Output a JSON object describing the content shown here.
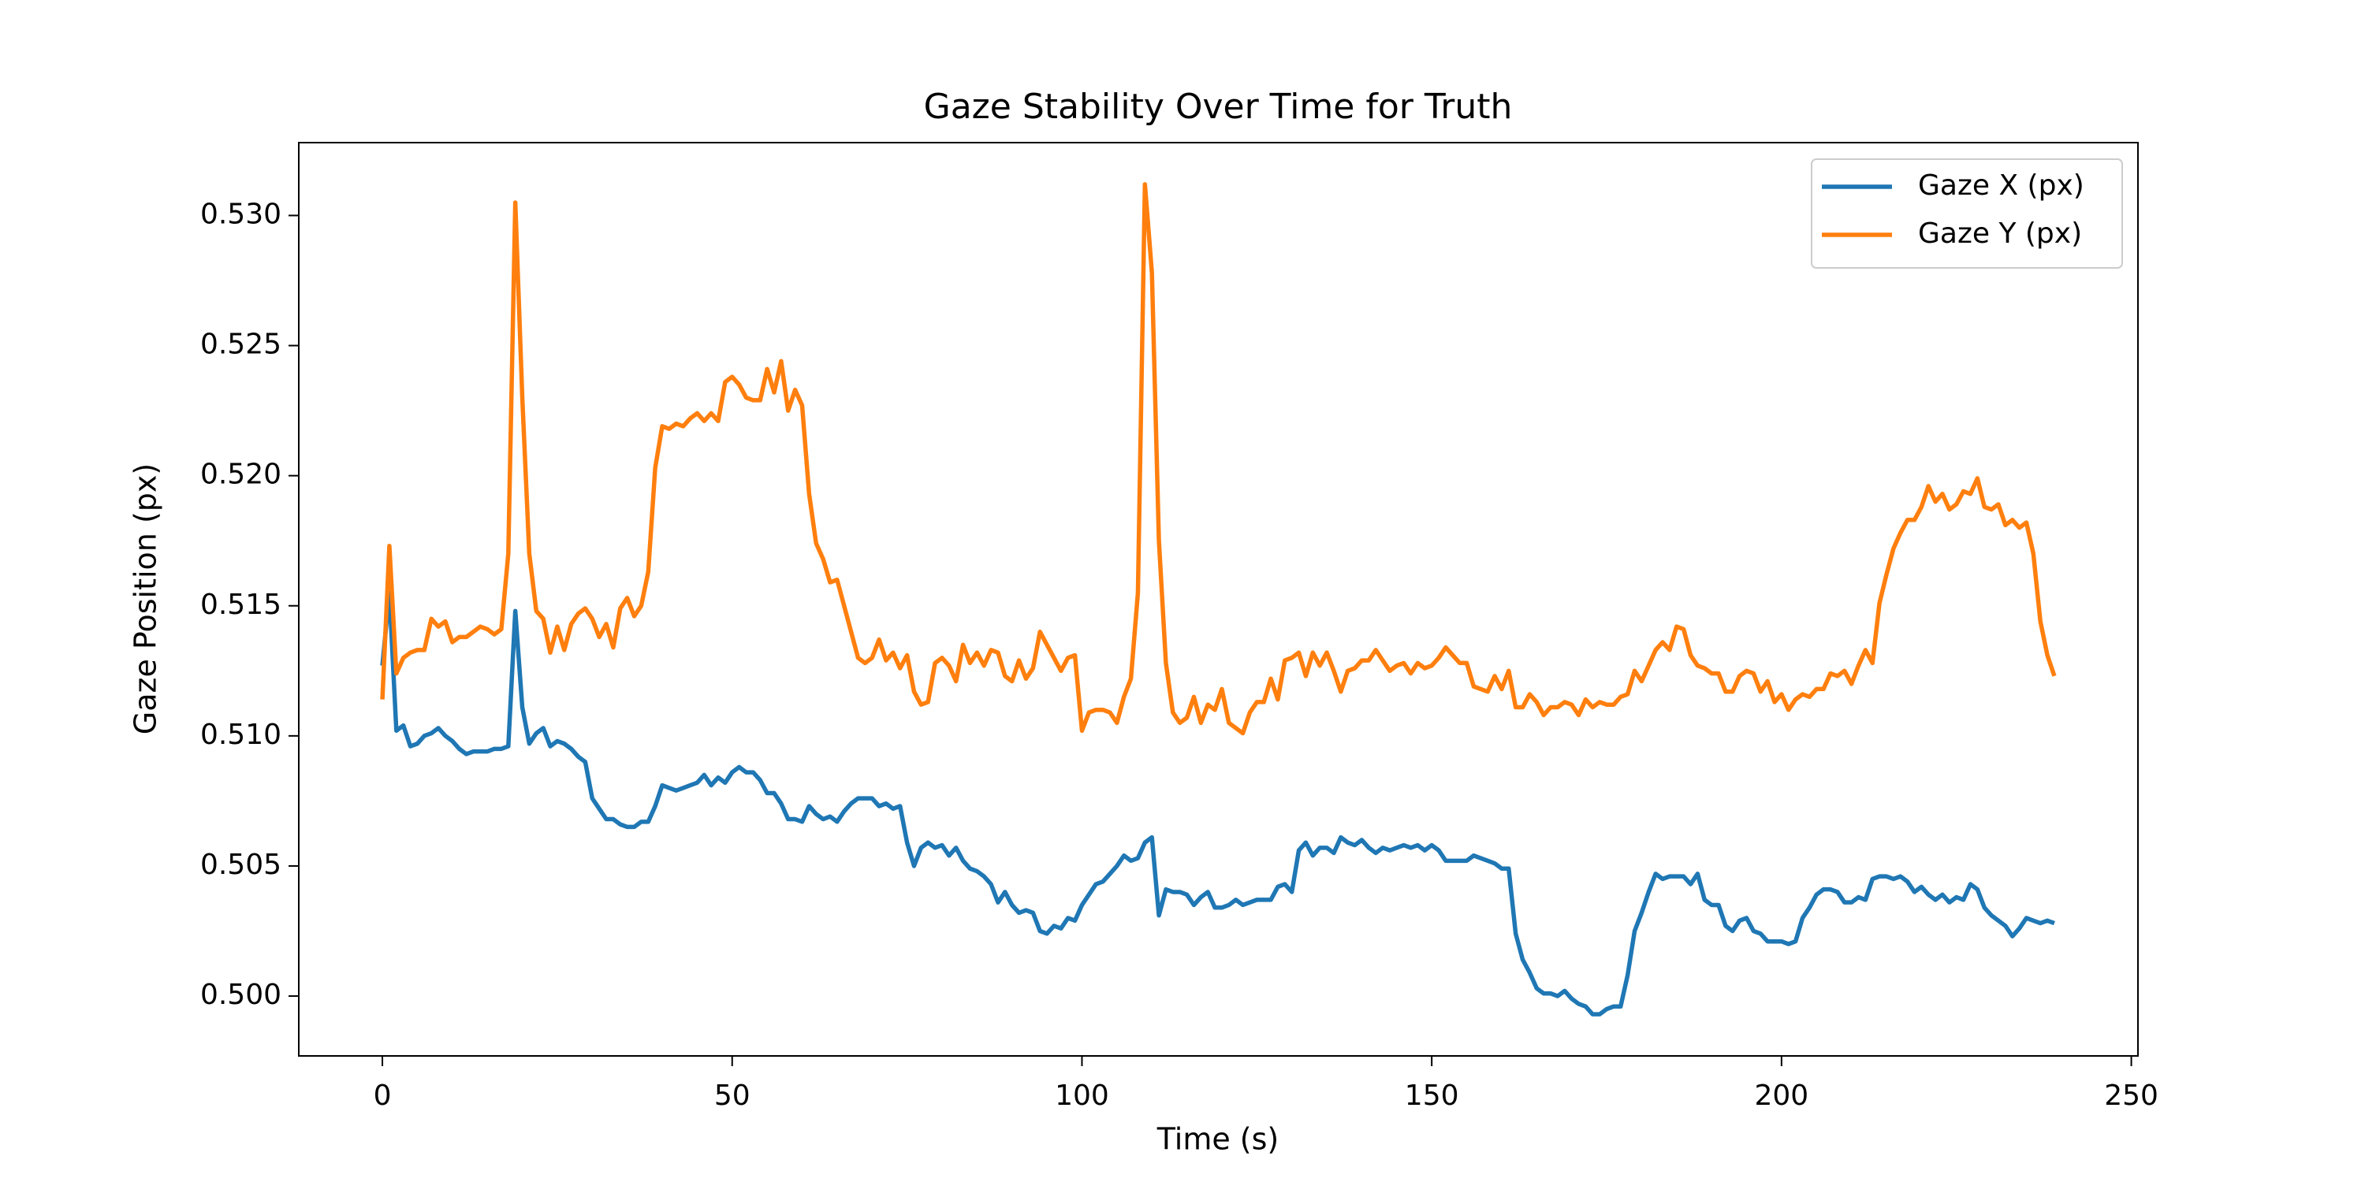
{
  "chart_data": {
    "type": "line",
    "title": "Gaze Stability Over Time for Truth",
    "xlabel": "Time (s)",
    "ylabel": "Gaze Position (px)",
    "x": [
      0,
      1,
      2,
      3,
      4,
      5,
      6,
      7,
      8,
      9,
      10,
      11,
      12,
      13,
      14,
      15,
      16,
      17,
      18,
      19,
      20,
      21,
      22,
      23,
      24,
      25,
      26,
      27,
      28,
      29,
      30,
      31,
      32,
      33,
      34,
      35,
      36,
      37,
      38,
      39,
      40,
      41,
      42,
      43,
      44,
      45,
      46,
      47,
      48,
      49,
      50,
      51,
      52,
      53,
      54,
      55,
      56,
      57,
      58,
      59,
      60,
      61,
      62,
      63,
      64,
      65,
      66,
      67,
      68,
      69,
      70,
      71,
      72,
      73,
      74,
      75,
      76,
      77,
      78,
      79,
      80,
      81,
      82,
      83,
      84,
      85,
      86,
      87,
      88,
      89,
      90,
      91,
      92,
      93,
      94,
      95,
      96,
      97,
      98,
      99,
      100,
      101,
      102,
      103,
      104,
      105,
      106,
      107,
      108,
      109,
      110,
      111,
      112,
      113,
      114,
      115,
      116,
      117,
      118,
      119,
      120,
      121,
      122,
      123,
      124,
      125,
      126,
      127,
      128,
      129,
      130,
      131,
      132,
      133,
      134,
      135,
      136,
      137,
      138,
      139,
      140,
      141,
      142,
      143,
      144,
      145,
      146,
      147,
      148,
      149,
      150,
      151,
      152,
      153,
      154,
      155,
      156,
      157,
      158,
      159,
      160,
      161,
      162,
      163,
      164,
      165,
      166,
      167,
      168,
      169,
      170,
      171,
      172,
      173,
      174,
      175,
      176,
      177,
      178,
      179,
      180,
      181,
      182,
      183,
      184,
      185,
      186,
      187,
      188,
      189,
      190,
      191,
      192,
      193,
      194,
      195,
      196,
      197,
      198,
      199,
      200,
      201,
      202,
      203,
      204,
      205,
      206,
      207,
      208,
      209,
      210,
      211,
      212,
      213,
      214,
      215,
      216,
      217,
      218,
      219,
      220,
      221,
      222,
      223,
      224,
      225,
      226,
      227,
      228,
      229,
      230,
      231,
      232,
      233,
      234,
      235,
      236,
      237,
      238,
      239
    ],
    "series": [
      {
        "name": "Gaze X (px)",
        "color": "#1f77b4",
        "values": [
          0.5127,
          0.5155,
          0.5102,
          0.5104,
          0.5096,
          0.5097,
          0.51,
          0.5101,
          0.5103,
          0.51,
          0.5098,
          0.5095,
          0.5093,
          0.5094,
          0.5094,
          0.5094,
          0.5095,
          0.5095,
          0.5096,
          0.5148,
          0.5111,
          0.5097,
          0.5101,
          0.5103,
          0.5096,
          0.5098,
          0.5097,
          0.5095,
          0.5092,
          0.509,
          0.5076,
          0.5072,
          0.5068,
          0.5068,
          0.5066,
          0.5065,
          0.5065,
          0.5067,
          0.5067,
          0.5073,
          0.5081,
          0.508,
          0.5079,
          0.508,
          0.5081,
          0.5082,
          0.5085,
          0.5081,
          0.5084,
          0.5082,
          0.5086,
          0.5088,
          0.5086,
          0.5086,
          0.5083,
          0.5078,
          0.5078,
          0.5074,
          0.5068,
          0.5068,
          0.5067,
          0.5073,
          0.507,
          0.5068,
          0.5069,
          0.5067,
          0.5071,
          0.5074,
          0.5076,
          0.5076,
          0.5076,
          0.5073,
          0.5074,
          0.5072,
          0.5073,
          0.5059,
          0.505,
          0.5057,
          0.5059,
          0.5057,
          0.5058,
          0.5054,
          0.5057,
          0.5052,
          0.5049,
          0.5048,
          0.5046,
          0.5043,
          0.5036,
          0.504,
          0.5035,
          0.5032,
          0.5033,
          0.5032,
          0.5025,
          0.5024,
          0.5027,
          0.5026,
          0.503,
          0.5029,
          0.5035,
          0.5039,
          0.5043,
          0.5044,
          0.5047,
          0.505,
          0.5054,
          0.5052,
          0.5053,
          0.5059,
          0.5061,
          0.5031,
          0.5041,
          0.504,
          0.504,
          0.5039,
          0.5035,
          0.5038,
          0.504,
          0.5034,
          0.5034,
          0.5035,
          0.5037,
          0.5035,
          0.5036,
          0.5037,
          0.5037,
          0.5037,
          0.5042,
          0.5043,
          0.504,
          0.5056,
          0.5059,
          0.5054,
          0.5057,
          0.5057,
          0.5055,
          0.5061,
          0.5059,
          0.5058,
          0.506,
          0.5057,
          0.5055,
          0.5057,
          0.5056,
          0.5057,
          0.5058,
          0.5057,
          0.5058,
          0.5056,
          0.5058,
          0.5056,
          0.5052,
          0.5052,
          0.5052,
          0.5052,
          0.5054,
          0.5053,
          0.5052,
          0.5051,
          0.5049,
          0.5049,
          0.5024,
          0.5014,
          0.5009,
          0.5003,
          0.5001,
          0.5001,
          0.5,
          0.5002,
          0.4999,
          0.4997,
          0.4996,
          0.4993,
          0.4993,
          0.4995,
          0.4996,
          0.4996,
          0.5008,
          0.5025,
          0.5032,
          0.504,
          0.5047,
          0.5045,
          0.5046,
          0.5046,
          0.5046,
          0.5043,
          0.5047,
          0.5037,
          0.5035,
          0.5035,
          0.5027,
          0.5025,
          0.5029,
          0.503,
          0.5025,
          0.5024,
          0.5021,
          0.5021,
          0.5021,
          0.502,
          0.5021,
          0.503,
          0.5034,
          0.5039,
          0.5041,
          0.5041,
          0.504,
          0.5036,
          0.5036,
          0.5038,
          0.5037,
          0.5045,
          0.5046,
          0.5046,
          0.5045,
          0.5046,
          0.5044,
          0.504,
          0.5042,
          0.5039,
          0.5037,
          0.5039,
          0.5036,
          0.5038,
          0.5037,
          0.5043,
          0.5041,
          0.5034,
          0.5031,
          0.5029,
          0.5027,
          0.5023,
          0.5026,
          0.503,
          0.5029,
          0.5028,
          0.5029,
          0.5028
        ]
      },
      {
        "name": "Gaze Y (px)",
        "color": "#ff7f0e",
        "values": [
          0.5114,
          0.5173,
          0.5124,
          0.513,
          0.5132,
          0.5133,
          0.5133,
          0.5145,
          0.5142,
          0.5144,
          0.5136,
          0.5138,
          0.5138,
          0.514,
          0.5142,
          0.5141,
          0.5139,
          0.5141,
          0.517,
          0.5305,
          0.523,
          0.517,
          0.5148,
          0.5145,
          0.5132,
          0.5142,
          0.5133,
          0.5143,
          0.5147,
          0.5149,
          0.5145,
          0.5138,
          0.5143,
          0.5134,
          0.5149,
          0.5153,
          0.5146,
          0.515,
          0.5163,
          0.5203,
          0.5219,
          0.5218,
          0.522,
          0.5219,
          0.5222,
          0.5224,
          0.5221,
          0.5224,
          0.5221,
          0.5236,
          0.5238,
          0.5235,
          0.523,
          0.5229,
          0.5229,
          0.5241,
          0.5232,
          0.5244,
          0.5225,
          0.5233,
          0.5227,
          0.5193,
          0.5174,
          0.5168,
          0.5159,
          0.516,
          0.515,
          0.514,
          0.513,
          0.5128,
          0.513,
          0.5137,
          0.5129,
          0.5132,
          0.5126,
          0.5131,
          0.5117,
          0.5112,
          0.5113,
          0.5128,
          0.513,
          0.5127,
          0.5121,
          0.5135,
          0.5128,
          0.5132,
          0.5127,
          0.5133,
          0.5132,
          0.5123,
          0.5121,
          0.5129,
          0.5122,
          0.5126,
          0.514,
          0.5135,
          0.513,
          0.5125,
          0.513,
          0.5131,
          0.5102,
          0.5109,
          0.511,
          0.511,
          0.5109,
          0.5105,
          0.5115,
          0.5122,
          0.5155,
          0.5312,
          0.5278,
          0.5175,
          0.5128,
          0.5109,
          0.5105,
          0.5107,
          0.5115,
          0.5105,
          0.5112,
          0.511,
          0.5118,
          0.5105,
          0.5103,
          0.5101,
          0.5109,
          0.5113,
          0.5113,
          0.5122,
          0.5114,
          0.5129,
          0.513,
          0.5132,
          0.5123,
          0.5132,
          0.5127,
          0.5132,
          0.5125,
          0.5117,
          0.5125,
          0.5126,
          0.5129,
          0.5129,
          0.5133,
          0.5129,
          0.5125,
          0.5127,
          0.5128,
          0.5124,
          0.5128,
          0.5126,
          0.5127,
          0.513,
          0.5134,
          0.5131,
          0.5128,
          0.5128,
          0.5119,
          0.5118,
          0.5117,
          0.5123,
          0.5118,
          0.5125,
          0.5111,
          0.5111,
          0.5116,
          0.5113,
          0.5108,
          0.5111,
          0.5111,
          0.5113,
          0.5112,
          0.5108,
          0.5114,
          0.5111,
          0.5113,
          0.5112,
          0.5112,
          0.5115,
          0.5116,
          0.5125,
          0.5121,
          0.5127,
          0.5133,
          0.5136,
          0.5133,
          0.5142,
          0.5141,
          0.5131,
          0.5127,
          0.5126,
          0.5124,
          0.5124,
          0.5117,
          0.5117,
          0.5123,
          0.5125,
          0.5124,
          0.5117,
          0.5121,
          0.5113,
          0.5116,
          0.511,
          0.5114,
          0.5116,
          0.5115,
          0.5118,
          0.5118,
          0.5124,
          0.5123,
          0.5125,
          0.512,
          0.5127,
          0.5133,
          0.5128,
          0.5151,
          0.5162,
          0.5172,
          0.5178,
          0.5183,
          0.5183,
          0.5188,
          0.5196,
          0.519,
          0.5193,
          0.5187,
          0.5189,
          0.5194,
          0.5193,
          0.5199,
          0.5188,
          0.5187,
          0.5189,
          0.5181,
          0.5183,
          0.518,
          0.5182,
          0.517,
          0.5144,
          0.5131,
          0.5123
        ]
      }
    ],
    "xlim": [
      -11.95,
      250.95
    ],
    "xticks": [
      0,
      50,
      100,
      150,
      200,
      250
    ],
    "ylim": [
      0.4977,
      0.5328
    ],
    "yticks": [
      {
        "value": 0.5,
        "label": "0.500"
      },
      0.505,
      {
        "value": 0.51,
        "label": "0.510"
      },
      0.515,
      {
        "value": 0.52,
        "label": "0.520"
      },
      0.525,
      {
        "value": 0.53,
        "label": "0.530"
      }
    ],
    "legend": "upper right",
    "grid": false
  }
}
